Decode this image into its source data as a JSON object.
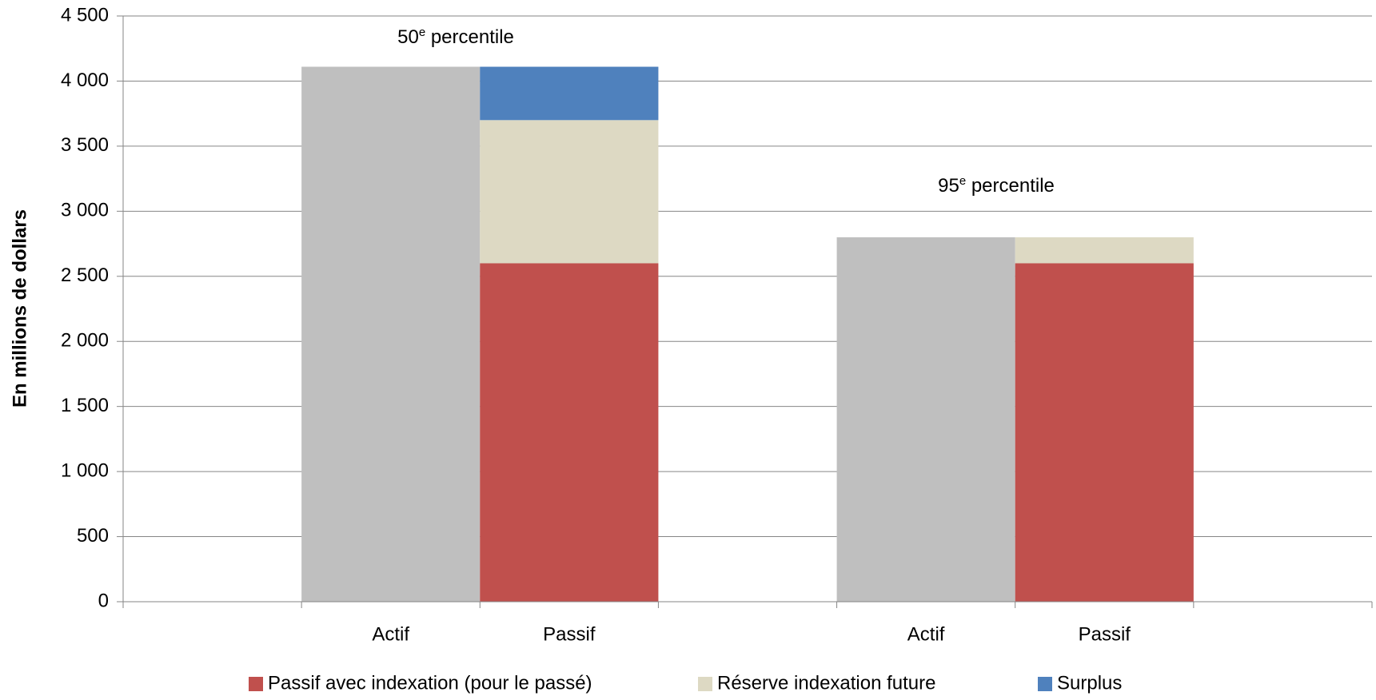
{
  "chart_data": {
    "type": "stacked-bar",
    "y_label": "En millions de dollars",
    "categories": [
      null,
      "Actif",
      "Passif",
      null,
      "Actif",
      "Passif",
      null
    ],
    "series": [
      {
        "color": "#bfbfbf",
        "values": [
          null,
          4110,
          null,
          null,
          2800,
          null,
          null
        ]
      },
      {
        "name": "Passif avec indexation (pour le passé)",
        "color": "#c0504d",
        "values": [
          null,
          null,
          2600,
          null,
          null,
          2600,
          null
        ]
      },
      {
        "name": "Réserve indexation future",
        "color": "#ddd9c3",
        "values": [
          null,
          null,
          1100,
          null,
          null,
          200,
          null
        ]
      },
      {
        "name": "Surplus",
        "color": "#4f81bd",
        "values": [
          null,
          null,
          410,
          null,
          null,
          null,
          null
        ]
      }
    ],
    "annotations": [
      {
        "text": "50",
        "sup": "e",
        "after": " percentile"
      },
      {
        "text": "95",
        "sup": "e",
        "after": " percentile"
      }
    ],
    "ylim": [
      0,
      4500
    ],
    "yticks": [
      0,
      500,
      {
        "value": 1000,
        "label": "1 000"
      },
      {
        "value": 1500,
        "label": "1 500"
      },
      {
        "value": 2000,
        "label": "2 000"
      },
      {
        "value": 2500,
        "label": "2 500"
      },
      {
        "value": 3000,
        "label": "3 000"
      },
      {
        "value": 3500,
        "label": "3 500"
      },
      {
        "value": 4000,
        "label": "4 000"
      },
      {
        "value": 4500,
        "label": "4 500"
      }
    ],
    "grid": true,
    "legend": "bottom"
  }
}
